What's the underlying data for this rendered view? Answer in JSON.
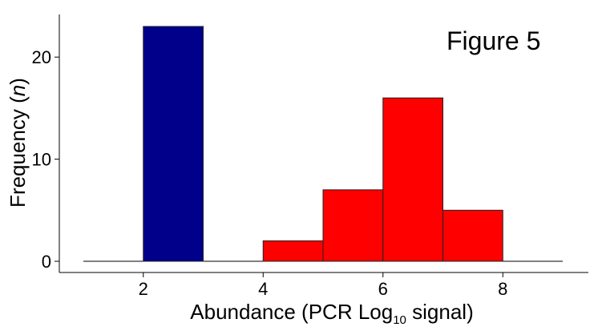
{
  "chart_data": {
    "type": "bar",
    "title": "",
    "annotation": "Figure 5",
    "xlabel": {
      "prefix": "Abundance (PCR Log",
      "subscript": "10",
      "suffix": " signal)"
    },
    "ylabel": {
      "prefix": "Frequency (",
      "italic": "n",
      "suffix": ")"
    },
    "xlim": [
      1,
      9
    ],
    "ylim": [
      0,
      23
    ],
    "xticks": [
      2,
      4,
      6,
      8
    ],
    "yticks": [
      0,
      10,
      20
    ],
    "grid": false,
    "bars": [
      {
        "x0": 2,
        "x1": 3,
        "value": 23,
        "color": "#00008B"
      },
      {
        "x0": 4,
        "x1": 5,
        "value": 2,
        "color": "#FF0000"
      },
      {
        "x0": 5,
        "x1": 6,
        "value": 7,
        "color": "#FF0000"
      },
      {
        "x0": 6,
        "x1": 7,
        "value": 16,
        "color": "#FF0000"
      },
      {
        "x0": 7,
        "x1": 8,
        "value": 5,
        "color": "#FF0000"
      }
    ],
    "baseline": {
      "x0": 1,
      "x1": 9,
      "y": 0
    }
  }
}
